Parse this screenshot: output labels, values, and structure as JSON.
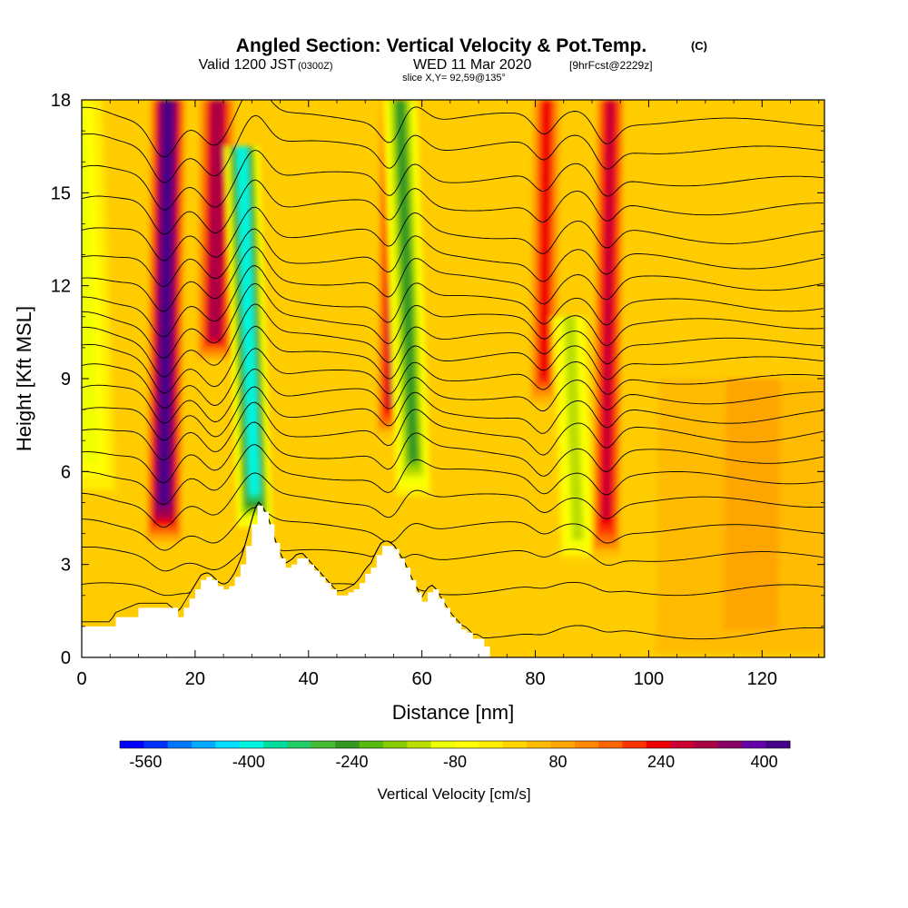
{
  "chart_data": {
    "type": "heatmap",
    "title": "Angled Section: Vertical Velocity & Pot.Temp.",
    "title_units": "(C)",
    "subtitle": {
      "prefix": "Valid 1200 JST",
      "utc": "(0300Z)",
      "date": "WED 11 Mar 2020",
      "forecast": "[9hrFcst@2229z]"
    },
    "slice_label": "slice X,Y= 92,59@135°",
    "xlabel": "Distance [nm]",
    "ylabel": "Height [Kft MSL]",
    "xlim": [
      0,
      131
    ],
    "ylim": [
      0,
      18
    ],
    "x_ticks": [
      "0",
      "20",
      "40",
      "60",
      "80",
      "100",
      "120"
    ],
    "x_tick_values": [
      0,
      20,
      40,
      60,
      80,
      100,
      120
    ],
    "y_ticks": [
      "0",
      "3",
      "6",
      "9",
      "12",
      "15",
      "18"
    ],
    "y_tick_values": [
      0,
      3,
      6,
      9,
      12,
      15,
      18
    ],
    "colorbar": {
      "label": "Vertical Velocity [cm/s]",
      "tick_labels": [
        "-560",
        "-400",
        "-240",
        "-80",
        "80",
        "240",
        "400"
      ],
      "tick_values": [
        -560,
        -400,
        -240,
        -80,
        80,
        240,
        400
      ],
      "range": [
        -600,
        440
      ],
      "colors": [
        "#0000ff",
        "#0033ff",
        "#0077ff",
        "#00aaff",
        "#00ddff",
        "#00f5e0",
        "#00dda0",
        "#22cc66",
        "#44bb33",
        "#339922",
        "#55bb11",
        "#88cc00",
        "#bbdd00",
        "#eeff00",
        "#ffff00",
        "#ffee00",
        "#ffd500",
        "#ffbb00",
        "#ffa500",
        "#ff8800",
        "#ff6600",
        "#ff3300",
        "#ee0000",
        "#cc0033",
        "#aa0044",
        "#880066",
        "#6600aa",
        "#440088"
      ]
    },
    "vertical_velocity_columns": [
      {
        "x": 1.5,
        "peak": -90,
        "width": 3.5,
        "top": 18,
        "bottom": 5
      },
      {
        "x": 14.5,
        "peak": 430,
        "width": 2.2,
        "top": 18,
        "bottom": 3.5
      },
      {
        "x": 23.5,
        "peak": 320,
        "width": 2.2,
        "top": 18,
        "bottom": 9.5
      },
      {
        "x": 30.5,
        "peak": -400,
        "width": 2.2,
        "top": 16.5,
        "bottom": 4
      },
      {
        "x": 54.5,
        "peak": 280,
        "width": 1.8,
        "top": 18,
        "bottom": 7
      },
      {
        "x": 58.5,
        "peak": -230,
        "width": 2.2,
        "top": 18,
        "bottom": 5
      },
      {
        "x": 81.5,
        "peak": 250,
        "width": 1.8,
        "top": 18,
        "bottom": 8
      },
      {
        "x": 87.5,
        "peak": -120,
        "width": 2.4,
        "top": 11,
        "bottom": 3
      },
      {
        "x": 92.5,
        "peak": 270,
        "width": 1.8,
        "top": 18,
        "bottom": 3
      },
      {
        "x": 118,
        "peak": 70,
        "width": 12,
        "top": 9,
        "bottom": 0
      }
    ],
    "terrain": {
      "x": [
        0,
        5,
        6,
        10,
        15,
        17,
        18,
        19,
        20,
        21,
        22,
        23,
        24,
        25,
        26,
        27,
        28,
        29,
        30,
        31,
        32,
        33,
        34,
        35,
        36,
        37,
        38,
        39,
        40,
        41,
        42,
        43,
        44,
        45,
        46,
        47,
        48,
        49,
        50,
        51,
        52,
        53,
        54,
        55,
        56,
        57,
        58,
        59,
        60,
        61,
        62,
        63,
        64,
        65,
        66,
        67,
        68,
        69,
        70,
        71,
        72,
        131
      ],
      "height": [
        1.0,
        1.0,
        1.3,
        1.6,
        1.6,
        1.3,
        1.6,
        1.9,
        2.2,
        2.5,
        2.6,
        2.5,
        2.3,
        2.2,
        2.3,
        2.6,
        3.0,
        3.6,
        4.3,
        4.9,
        4.7,
        4.3,
        3.7,
        3.2,
        2.9,
        3.0,
        3.2,
        3.2,
        3.0,
        2.8,
        2.6,
        2.4,
        2.2,
        2.0,
        2.0,
        2.1,
        2.2,
        2.4,
        2.7,
        2.9,
        3.3,
        3.6,
        3.6,
        3.5,
        3.2,
        2.9,
        2.5,
        2.1,
        1.8,
        2.1,
        2.2,
        1.9,
        1.6,
        1.3,
        1.1,
        0.9,
        0.8,
        0.6,
        0.6,
        0.35,
        0.0,
        0.0
      ]
    },
    "isentrope_base_heights": [
      0.8,
      2.2,
      3.3,
      4.2,
      5.1,
      5.9,
      6.6,
      7.3,
      7.9,
      8.5,
      9.1,
      9.7,
      10.3,
      10.9,
      11.5,
      12.2,
      12.9,
      13.7,
      14.6,
      15.5,
      16.5,
      17.4
    ]
  }
}
